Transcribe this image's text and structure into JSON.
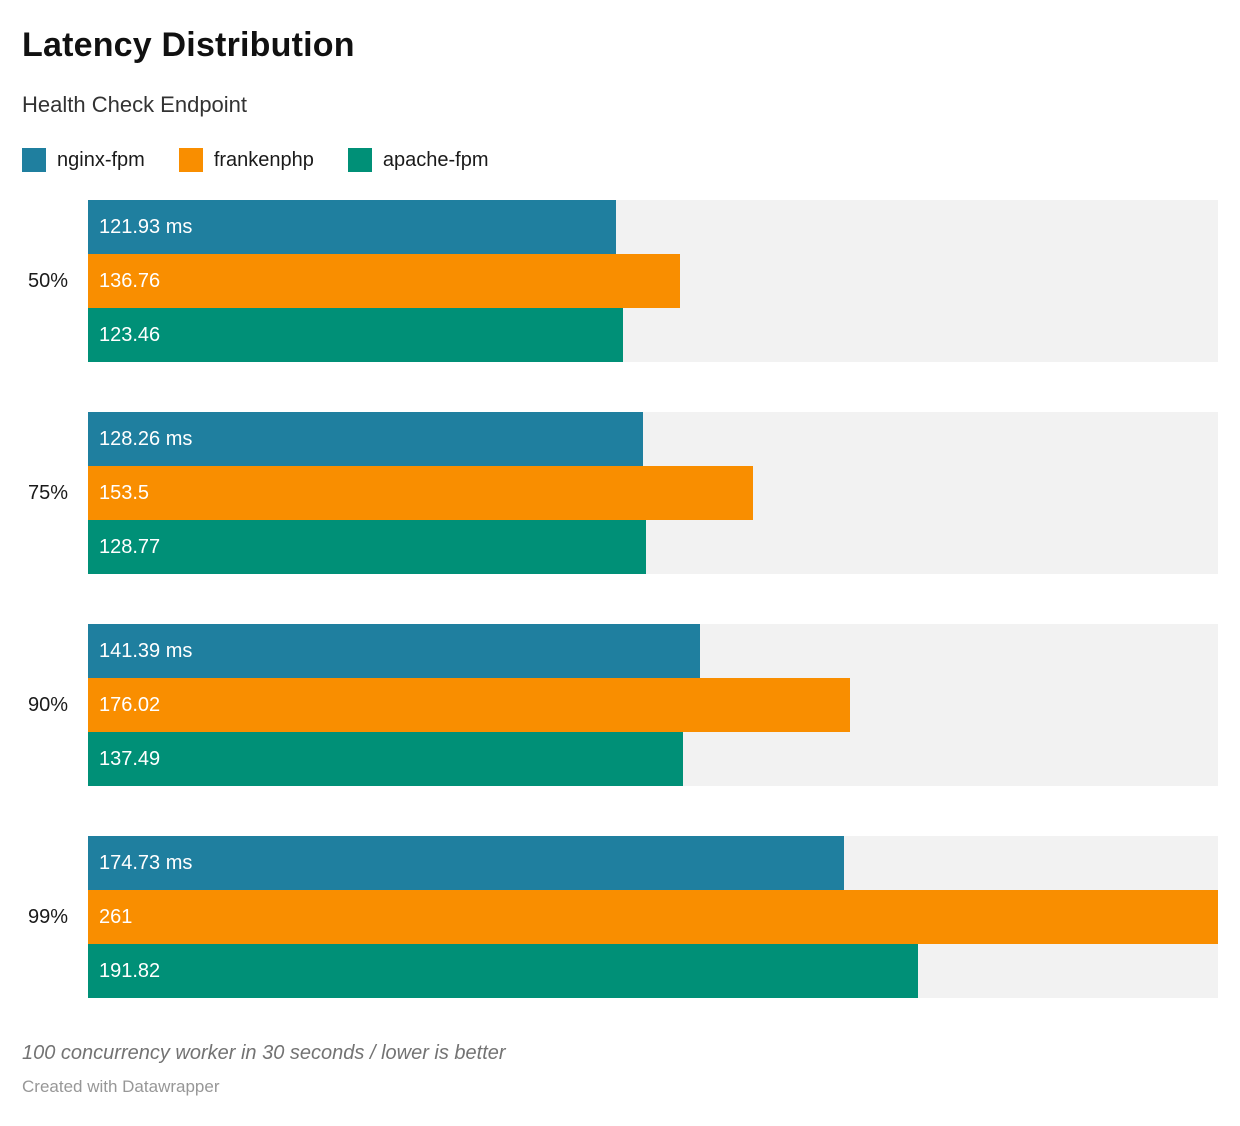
{
  "chart_data": {
    "type": "bar",
    "orientation": "horizontal",
    "title": "Latency Distribution",
    "subtitle": "Health Check Endpoint",
    "categories": [
      "50%",
      "75%",
      "90%",
      "99%"
    ],
    "series": [
      {
        "name": "nginx-fpm",
        "color": "#1f7f9f",
        "values": [
          121.93,
          128.26,
          141.39,
          174.73
        ],
        "labels": [
          "121.93 ms",
          "128.26 ms",
          "141.39 ms",
          "174.73 ms"
        ]
      },
      {
        "name": "frankenphp",
        "color": "#f98e00",
        "values": [
          136.76,
          153.5,
          176.02,
          261
        ],
        "labels": [
          "136.76",
          "153.5",
          "176.02",
          "261"
        ]
      },
      {
        "name": "apache-fpm",
        "color": "#009077",
        "values": [
          123.46,
          128.77,
          137.49,
          191.82
        ],
        "labels": [
          "123.46",
          "128.77",
          "137.49",
          "191.82"
        ]
      }
    ],
    "xlim": [
      0,
      261
    ],
    "track_color": "#f2f2f2",
    "legend_position": "top",
    "grid": false,
    "notes": "100 concurrency worker in 30 seconds / lower is better",
    "attribution": "Created with Datawrapper"
  }
}
